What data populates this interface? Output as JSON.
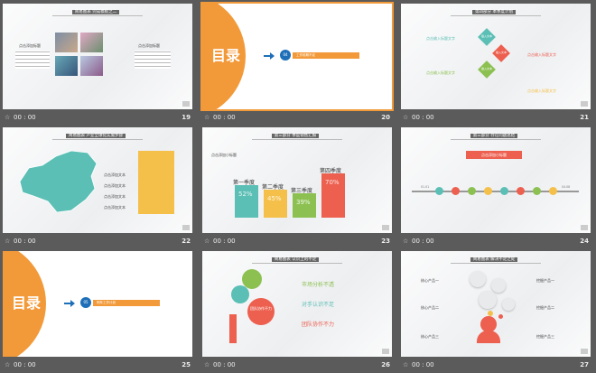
{
  "slides": [
    {
      "num": "19",
      "time": "00 : 00",
      "header": "简易图表 完成模板之二",
      "labels": [
        "点击添加标题",
        "点击添加标题"
      ]
    },
    {
      "num": "20",
      "time": "00 : 00",
      "title": "目录",
      "badge": "04",
      "item": "工作前期不足"
    },
    {
      "num": "21",
      "time": "00 : 00",
      "header": "第四部分 本季度计划",
      "labels": [
        "点击输入标题文字",
        "点击输入标题文字",
        "点击输入标题文字",
        "点击输入标题文字"
      ],
      "diamonds": [
        "插入文本",
        "插入文本",
        "插入文本"
      ]
    },
    {
      "num": "22",
      "time": "00 : 00",
      "header": "简易图表 产业全球化实施步骤",
      "labels": [
        "点击添加文本",
        "点击添加文本",
        "点击添加文本",
        "点击添加文本"
      ]
    },
    {
      "num": "23",
      "time": "00 : 00",
      "header": "第三部分 季度销售汇报",
      "chart_data": {
        "type": "bar",
        "categories": [
          "第一季度",
          "第二季度",
          "第三季度",
          "第四季度"
        ],
        "values": [
          52,
          45,
          39,
          70
        ],
        "labels": [
          "52%",
          "45%",
          "39%",
          "70%"
        ],
        "colors": [
          "#5bbfb5",
          "#f4c04a",
          "#8cc152",
          "#ed5f4f"
        ],
        "ylim": [
          0,
          100
        ]
      },
      "note": "点击添加小标题"
    },
    {
      "num": "24",
      "time": "00 : 00",
      "header": "第三部分 存在问题总结",
      "banner": "点击添加小标题",
      "timeline": [
        "01.01",
        "01.08",
        "02.01",
        "02.08",
        "03.01",
        "03.08",
        "04.01",
        "04.08"
      ]
    },
    {
      "num": "25",
      "time": "00 : 00",
      "title": "目录",
      "badge": "05",
      "item": "明年工作计划"
    },
    {
      "num": "26",
      "time": "00 : 00",
      "header": "简易图表 认识上的不足",
      "gear": "团队协作不力",
      "points": [
        "市场分析不透",
        "对手认识不足",
        "团队协作不力"
      ]
    },
    {
      "num": "27",
      "time": "00 : 00",
      "header": "简易图表 解决不足之处",
      "labels": [
        "核心产品一",
        "核心产品二",
        "核心产品三",
        "挖掘产品一",
        "挖掘产品二",
        "挖掘产品三"
      ]
    }
  ],
  "colors": {
    "orange": "#f29a3a",
    "blue": "#1e6fb8",
    "teal": "#5bbfb5",
    "red": "#ed5f4f",
    "green": "#8cc152",
    "yellow": "#f4c04a"
  }
}
